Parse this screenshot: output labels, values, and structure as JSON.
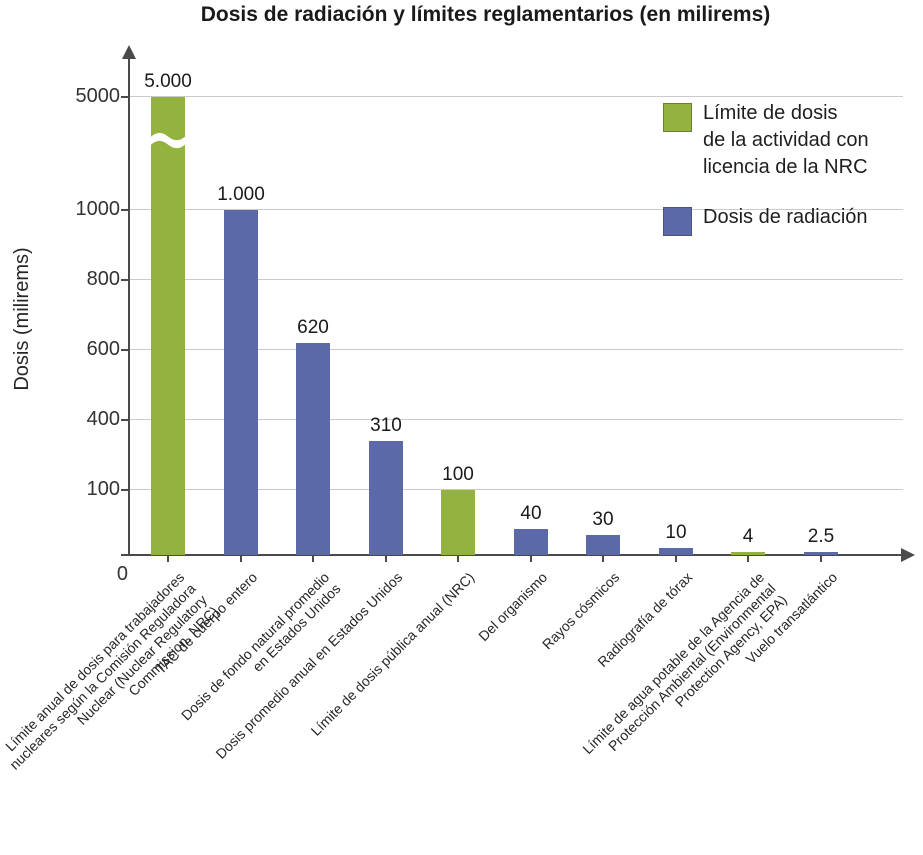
{
  "title": "Dosis de radiación y límites reglamentarios (en milirems)",
  "y_axis": {
    "label": "Dosis (milirems)"
  },
  "legend": {
    "items": [
      {
        "key": "limit",
        "color": "#94b23e",
        "lines": [
          "Límite de dosis",
          "de la actividad con",
          "licencia de la NRC"
        ]
      },
      {
        "key": "dose",
        "color": "#5b69a8",
        "lines": [
          "Dosis de radiación"
        ]
      }
    ]
  },
  "chart_data": {
    "type": "bar",
    "title": "Dosis de radiación y límites reglamentarios (en milirems)",
    "xlabel": "",
    "ylabel": "Dosis (milirems)",
    "yticks": [
      0,
      100,
      400,
      600,
      800,
      1000,
      5000
    ],
    "ytick_labels": [
      "0",
      "100",
      "400",
      "600",
      "800",
      "1000",
      "5000"
    ],
    "axis_break_between": [
      1000,
      5000
    ],
    "grid": true,
    "legend_position": "top-right",
    "series": [
      {
        "name": "Límite de dosis de la actividad con licencia de la NRC",
        "key": "limit",
        "color": "#94b23e"
      },
      {
        "name": "Dosis de radiación",
        "key": "dose",
        "color": "#5b69a8"
      }
    ],
    "series_colors": {
      "limit": "#94b23e",
      "dose": "#5b69a8"
    },
    "bars": [
      {
        "value": 5000,
        "label": "5.000",
        "series": "limit",
        "broken": true,
        "category": "Límite anual de dosis para trabajadores nucleares según la Comisión Reguladora Nuclear (Nuclear Regulatory Commission, NRC)",
        "category_lines": [
          "Límite anual de dosis para trabajadores",
          "nucleares según la Comisión Reguladora",
          "Nuclear (Nuclear Regulatory",
          "Commission, NRC)"
        ]
      },
      {
        "value": 1000,
        "label": "1.000",
        "series": "dose",
        "category": "TAC de cuerpo entero",
        "category_lines": [
          "TAC de cuerpo entero"
        ]
      },
      {
        "value": 620,
        "label": "620",
        "series": "dose",
        "category": "Dosis de fondo natural promedio en Estados Unidos",
        "category_lines": [
          "Dosis de fondo natural promedio",
          "en Estados Unidos"
        ]
      },
      {
        "value": 310,
        "label": "310",
        "series": "dose",
        "category": "Dosis promedio anual en Estados Unidos",
        "category_lines": [
          "Dosis promedio anual en Estados Unidos"
        ]
      },
      {
        "value": 100,
        "label": "100",
        "series": "limit",
        "category": "Límite de dosis pública anual (NRC)",
        "category_lines": [
          "Límite de dosis pública anual (NRC)"
        ]
      },
      {
        "value": 40,
        "label": "40",
        "series": "dose",
        "category": "Del organismo",
        "category_lines": [
          "Del organismo"
        ]
      },
      {
        "value": 30,
        "label": "30",
        "series": "dose",
        "category": "Rayos cósmicos",
        "category_lines": [
          "Rayos cósmicos"
        ]
      },
      {
        "value": 10,
        "label": "10",
        "series": "dose",
        "category": "Radiografía de tórax",
        "category_lines": [
          "Radiografía de tórax"
        ]
      },
      {
        "value": 4,
        "label": "4",
        "series": "limit",
        "category": "Límite de agua potable de la Agencia de Protección Ambiental (Environmental Protection Agency, EPA)",
        "category_lines": [
          "Límite de agua potable de la Agencia de",
          "Protección Ambiental (Environmental",
          "Protection Agency, EPA)"
        ]
      },
      {
        "value": 2.5,
        "label": "2.5",
        "series": "dose",
        "category": "Vuelo transatlántico",
        "category_lines": [
          "Vuelo transatlántico"
        ]
      }
    ]
  }
}
